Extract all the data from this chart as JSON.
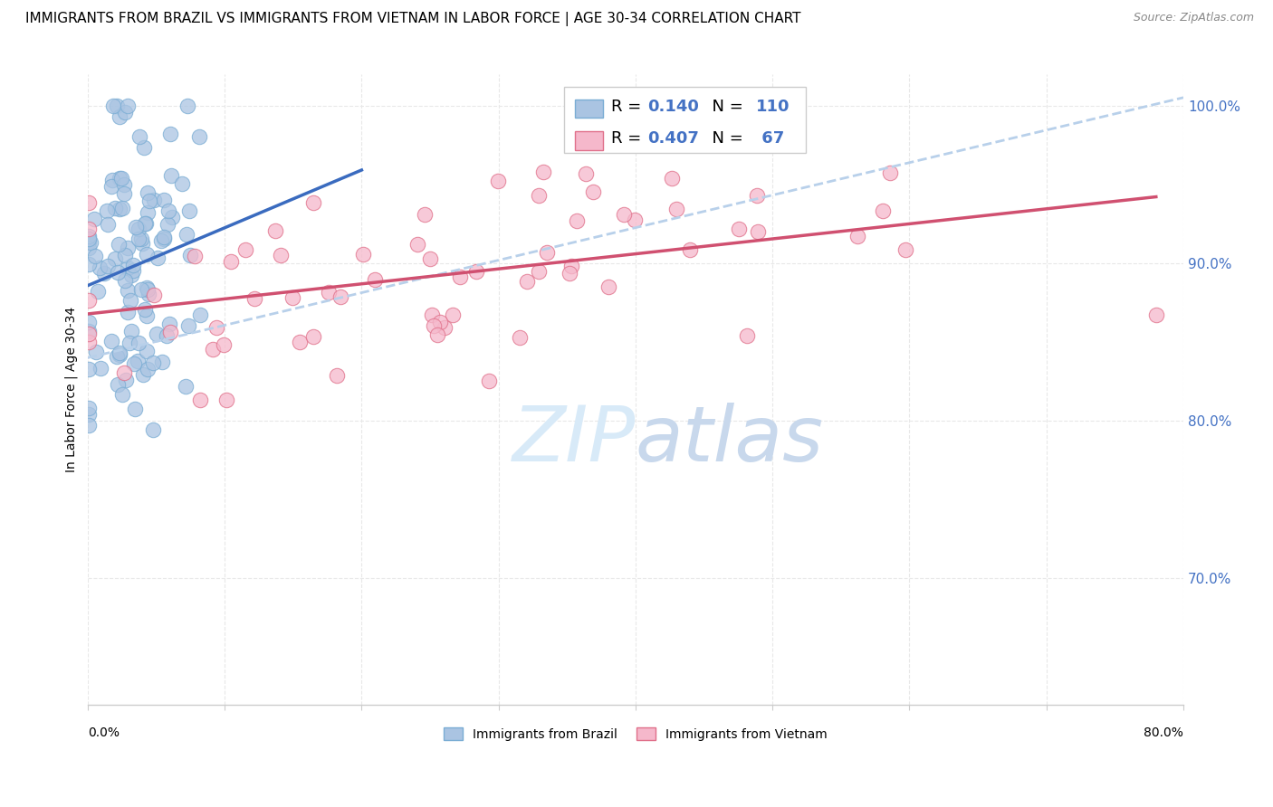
{
  "title": "IMMIGRANTS FROM BRAZIL VS IMMIGRANTS FROM VIETNAM IN LABOR FORCE | AGE 30-34 CORRELATION CHART",
  "source": "Source: ZipAtlas.com",
  "ylabel": "In Labor Force | Age 30-34",
  "brazil_R": 0.14,
  "brazil_N": 110,
  "vietnam_R": 0.407,
  "vietnam_N": 67,
  "brazil_color": "#aac4e2",
  "brazil_edge_color": "#7aadd4",
  "vietnam_color": "#f5b8cb",
  "vietnam_edge_color": "#e0708a",
  "brazil_line_color": "#3a6bbf",
  "vietnam_line_color": "#d05070",
  "dashed_line_color": "#b8d0ea",
  "watermark_color": "#d8eaf8",
  "background_color": "#ffffff",
  "grid_color": "#e8e8e8",
  "title_fontsize": 11,
  "source_fontsize": 9,
  "tick_label_color": "#4472c4",
  "xlim": [
    0.0,
    0.8
  ],
  "ylim": [
    0.62,
    1.02
  ],
  "figsize": [
    14.06,
    8.92
  ],
  "dpi": 100,
  "brazil_seed": 42,
  "vietnam_seed": 77
}
